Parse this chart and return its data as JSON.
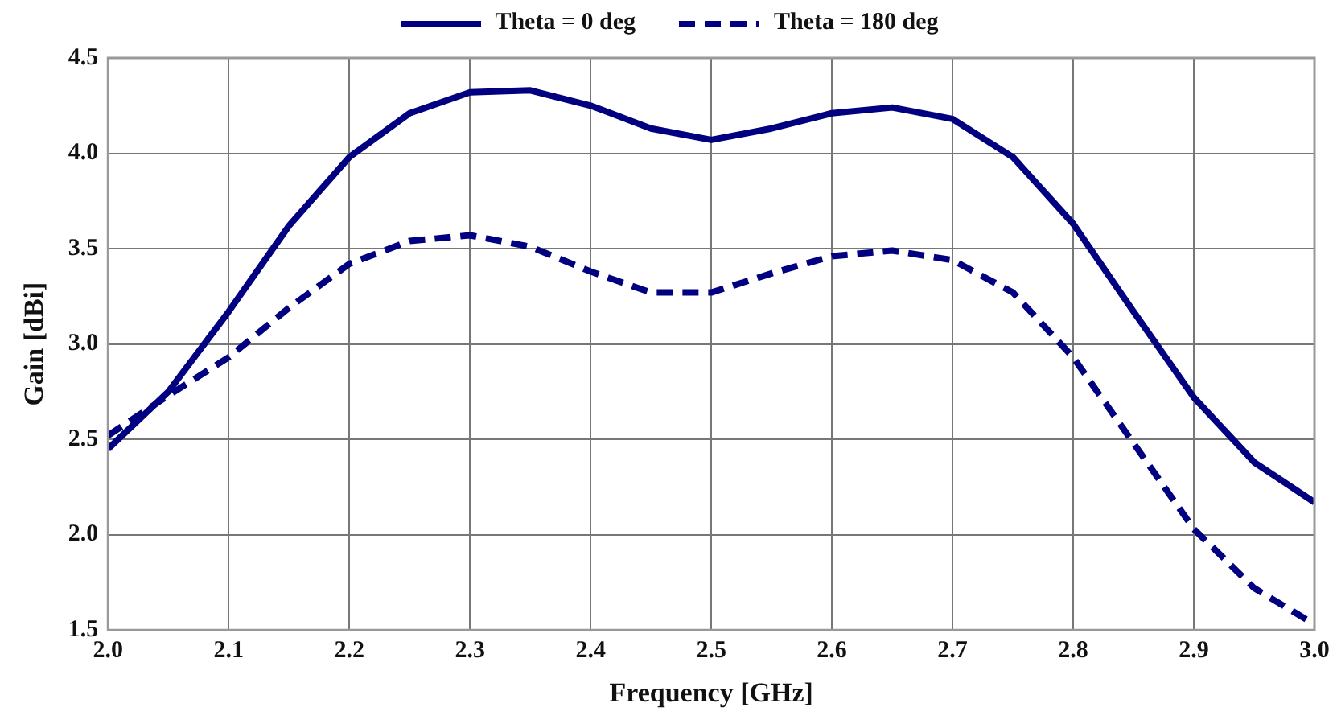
{
  "chart_data": {
    "type": "line",
    "xlabel": "Frequency [GHz]",
    "ylabel": "Gain [dBi]",
    "x": [
      2.0,
      2.05,
      2.1,
      2.15,
      2.2,
      2.25,
      2.3,
      2.35,
      2.4,
      2.45,
      2.5,
      2.55,
      2.6,
      2.65,
      2.7,
      2.75,
      2.8,
      2.85,
      2.9,
      2.95,
      3.0
    ],
    "series": [
      {
        "name": "Theta = 0 deg",
        "color": "#000080",
        "line_style": "solid",
        "values": [
          2.45,
          2.75,
          3.17,
          3.62,
          3.98,
          4.21,
          4.32,
          4.33,
          4.25,
          4.13,
          4.07,
          4.13,
          4.21,
          4.24,
          4.18,
          3.98,
          3.63,
          3.17,
          2.72,
          2.38,
          2.17
        ]
      },
      {
        "name": "Theta = 180 deg",
        "color": "#000080",
        "line_style": "dashed",
        "values": [
          2.52,
          2.73,
          2.93,
          3.19,
          3.42,
          3.54,
          3.57,
          3.51,
          3.38,
          3.27,
          3.27,
          3.37,
          3.46,
          3.49,
          3.44,
          3.27,
          2.93,
          2.48,
          2.03,
          1.72,
          1.53
        ]
      }
    ],
    "xlim": [
      2.0,
      3.0
    ],
    "xticks": [
      {
        "value": 2.0,
        "label": "2.0"
      },
      {
        "value": 2.1,
        "label": "2.1"
      },
      {
        "value": 2.2,
        "label": "2.2"
      },
      {
        "value": 2.3,
        "label": "2.3"
      },
      {
        "value": 2.4,
        "label": "2.4"
      },
      {
        "value": 2.5,
        "label": "2.5"
      },
      {
        "value": 2.6,
        "label": "2.6"
      },
      {
        "value": 2.7,
        "label": "2.7"
      },
      {
        "value": 2.8,
        "label": "2.8"
      },
      {
        "value": 2.9,
        "label": "2.9"
      },
      {
        "value": 3.0,
        "label": "3.0"
      }
    ],
    "ylim": [
      1.5,
      4.5
    ],
    "yticks": [
      {
        "value": 1.5,
        "label": "1.5"
      },
      {
        "value": 2.0,
        "label": "2.0"
      },
      {
        "value": 2.5,
        "label": "2.5"
      },
      {
        "value": 3.0,
        "label": "3.0"
      },
      {
        "value": 3.5,
        "label": "3.5"
      },
      {
        "value": 4.0,
        "label": "4.0"
      },
      {
        "value": 4.5,
        "label": "4.5"
      }
    ],
    "grid": true,
    "legend": "top",
    "marker": "none"
  }
}
